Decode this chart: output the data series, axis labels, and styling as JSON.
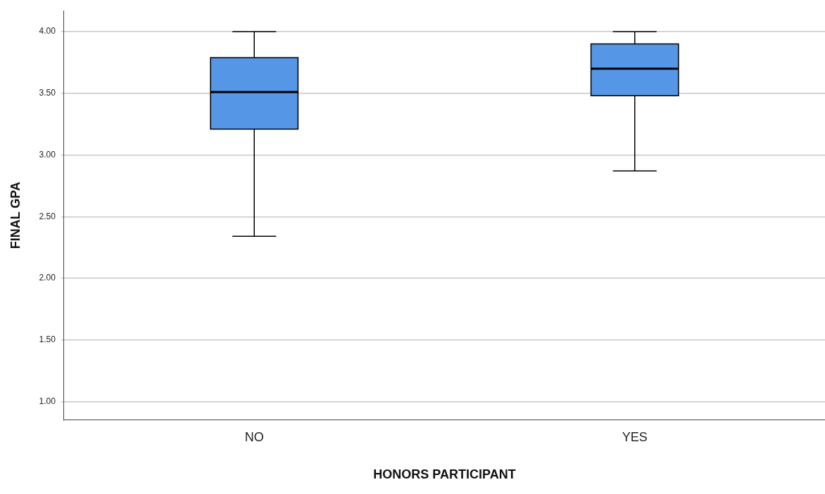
{
  "chart_data": {
    "type": "box",
    "xlabel": "HONORS PARTICIPANT",
    "ylabel": "FINAL GPA",
    "categories": [
      "NO",
      "YES"
    ],
    "color": "#5596e6",
    "boxes": [
      {
        "low": 2.34,
        "q1": 3.21,
        "median": 3.51,
        "q3": 3.79,
        "high": 4.0
      },
      {
        "low": 2.87,
        "q1": 3.48,
        "median": 3.7,
        "q3": 3.9,
        "high": 4.0
      }
    ],
    "ylim": [
      0.85,
      4.17
    ],
    "yticks": [
      {
        "value": 1,
        "label": "1.00"
      },
      {
        "value": 1.5,
        "label": "1.50"
      },
      {
        "value": 2,
        "label": "2.00"
      },
      {
        "value": 2.5,
        "label": "2.50"
      },
      {
        "value": 3,
        "label": "3.00"
      },
      {
        "value": 3.5,
        "label": "3.50"
      },
      {
        "value": 4,
        "label": "4.00"
      }
    ],
    "grid": "y",
    "legend": false
  }
}
